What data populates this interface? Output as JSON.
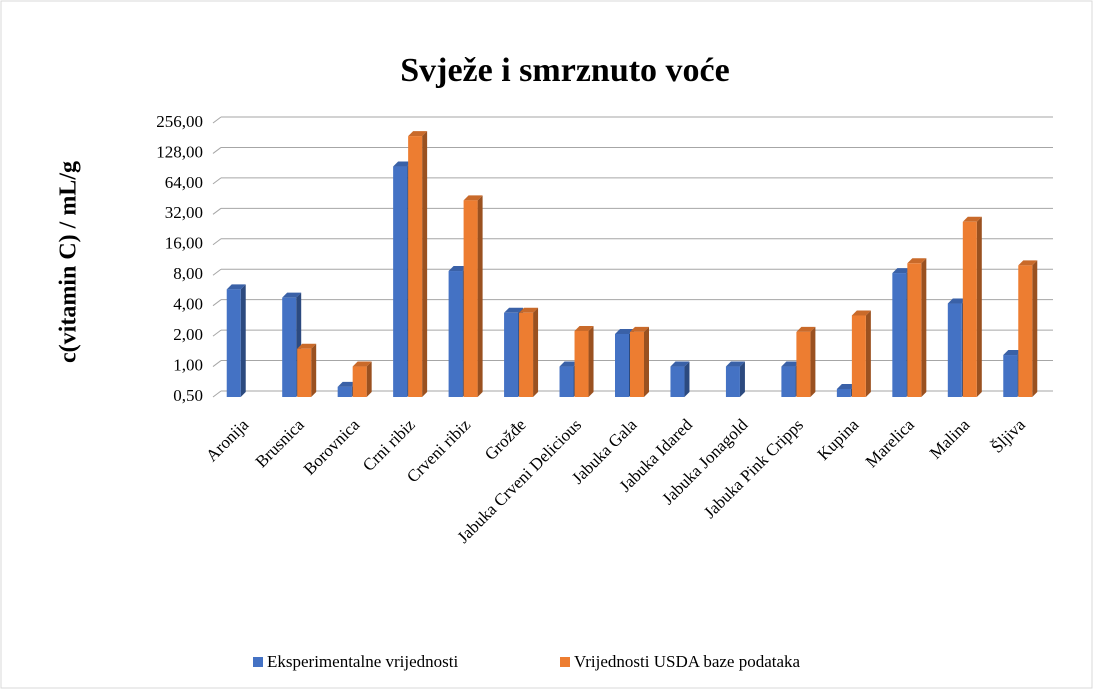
{
  "chart_data": {
    "type": "bar3d",
    "title": "Svježe i smrznuto voće",
    "y_label": "c(vitamin C) / mL/g",
    "categories": [
      "Aronija",
      "Brusnica",
      "Borovnica",
      "Crni ribiz",
      "Crveni ribiz",
      "Grožđe",
      "Jabuka Crveni Delicious",
      "Jabuka Gala",
      "Jabuka Idared",
      "Jabuka Jonagold",
      "Jabuka Pink Cripps",
      "Kupina",
      "Marelica",
      "Malina",
      "Šljiva"
    ],
    "series": [
      {
        "name": "Eksperimentalne vrijednosti",
        "color": "#4472c4",
        "values": [
          5.8,
          4.8,
          0.63,
          95,
          8.8,
          3.4,
          1.0,
          2.1,
          1.0,
          1.0,
          1.0,
          0.6,
          8.4,
          4.2,
          1.3
        ]
      },
      {
        "name": "Vrijednosti USDA baze podataka",
        "color": "#ed7d31",
        "values": [
          null,
          1.5,
          1.0,
          190,
          44,
          3.4,
          2.25,
          2.2,
          null,
          null,
          2.2,
          3.2,
          10.5,
          27,
          10
        ]
      }
    ],
    "log_scale": true,
    "log_base": 2,
    "ylim": [
      0.5,
      256
    ],
    "yticks": [
      {
        "value": 0.5,
        "label": "0,50"
      },
      {
        "value": 1,
        "label": "1,00"
      },
      {
        "value": 2,
        "label": "2,00"
      },
      {
        "value": 4,
        "label": "4,00"
      },
      {
        "value": 8,
        "label": "8,00"
      },
      {
        "value": 16,
        "label": "16,00"
      },
      {
        "value": 32,
        "label": "32,00"
      },
      {
        "value": 64,
        "label": "64,00"
      },
      {
        "value": 128,
        "label": "128,00"
      },
      {
        "value": 256,
        "label": "256,00"
      }
    ],
    "grid": true,
    "legend": "bottom"
  }
}
